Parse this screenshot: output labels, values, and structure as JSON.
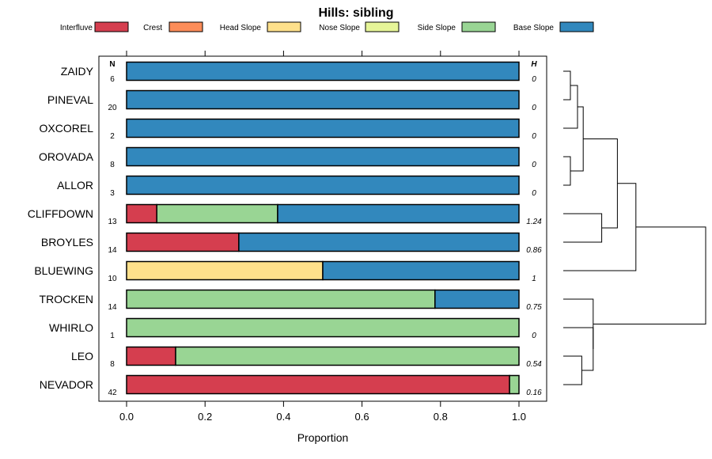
{
  "chart_data": {
    "type": "bar",
    "orientation": "horizontal",
    "stacked": true,
    "title": "Hills: sibling",
    "xlabel": "Proportion",
    "ylabel": "",
    "xlim": [
      0,
      1
    ],
    "x_ticks": [
      "0.0",
      "0.2",
      "0.4",
      "0.6",
      "0.8",
      "1.0"
    ],
    "n_header": "N",
    "h_header": "H",
    "legend_position": "top",
    "series": [
      {
        "name": "Interfluve",
        "color": "#d53e4f"
      },
      {
        "name": "Crest",
        "color": "#fc8d59"
      },
      {
        "name": "Head Slope",
        "color": "#fee08b"
      },
      {
        "name": "Nose Slope",
        "color": "#e6f598"
      },
      {
        "name": "Side Slope",
        "color": "#99d594"
      },
      {
        "name": "Base Slope",
        "color": "#3288bd"
      }
    ],
    "categories": [
      "ZAIDY",
      "PINEVAL",
      "OXCOREL",
      "OROVADA",
      "ALLOR",
      "CLIFFDOWN",
      "BROYLES",
      "BLUEWING",
      "TROCKEN",
      "WHIRLO",
      "LEO",
      "NEVADOR"
    ],
    "rows": [
      {
        "name": "ZAIDY",
        "n": "6",
        "h": "0",
        "values": [
          0,
          0,
          0,
          0,
          0,
          1
        ]
      },
      {
        "name": "PINEVAL",
        "n": "20",
        "h": "0",
        "values": [
          0,
          0,
          0,
          0,
          0,
          1
        ]
      },
      {
        "name": "OXCOREL",
        "n": "2",
        "h": "0",
        "values": [
          0,
          0,
          0,
          0,
          0,
          1
        ]
      },
      {
        "name": "OROVADA",
        "n": "8",
        "h": "0",
        "values": [
          0,
          0,
          0,
          0,
          0,
          1
        ]
      },
      {
        "name": "ALLOR",
        "n": "3",
        "h": "0",
        "values": [
          0,
          0,
          0,
          0,
          0,
          1
        ]
      },
      {
        "name": "CLIFFDOWN",
        "n": "13",
        "h": "1.24",
        "values": [
          0.077,
          0,
          0,
          0,
          0.308,
          0.615
        ]
      },
      {
        "name": "BROYLES",
        "n": "14",
        "h": "0.86",
        "values": [
          0.286,
          0,
          0,
          0,
          0,
          0.714
        ]
      },
      {
        "name": "BLUEWING",
        "n": "10",
        "h": "1",
        "values": [
          0,
          0,
          0.5,
          0,
          0,
          0.5
        ]
      },
      {
        "name": "TROCKEN",
        "n": "14",
        "h": "0.75",
        "values": [
          0,
          0,
          0,
          0,
          0.786,
          0.214
        ]
      },
      {
        "name": "WHIRLO",
        "n": "1",
        "h": "0",
        "values": [
          0,
          0,
          0,
          0,
          1,
          0
        ]
      },
      {
        "name": "LEO",
        "n": "8",
        "h": "0.54",
        "values": [
          0.125,
          0,
          0,
          0,
          0.875,
          0
        ]
      },
      {
        "name": "NEVADOR",
        "n": "42",
        "h": "0.16",
        "values": [
          0.976,
          0,
          0,
          0,
          0.024,
          0
        ]
      }
    ],
    "dendrogram": {
      "merges": [
        {
          "a": "ZAIDY",
          "b": "PINEVAL",
          "height": 0.05
        },
        {
          "a": "OROVADA",
          "b": "ALLOR",
          "height": 0.05
        },
        {
          "a": "m0",
          "b": "OXCOREL",
          "height": 0.1
        },
        {
          "a": "m2",
          "b": "m1",
          "height": 0.14
        },
        {
          "a": "CLIFFDOWN",
          "b": "BROYLES",
          "height": 0.27
        },
        {
          "a": "m3",
          "b": "m4",
          "height": 0.38
        },
        {
          "a": "m5",
          "b": "BLUEWING",
          "height": 0.51
        },
        {
          "a": "LEO",
          "b": "NEVADOR",
          "height": 0.13
        },
        {
          "a": "WHIRLO",
          "b": "m7",
          "height": 0.21
        },
        {
          "a": "TROCKEN",
          "b": "m8",
          "height": 0.21
        },
        {
          "a": "m6",
          "b": "m9",
          "height": 1.0
        }
      ]
    }
  }
}
